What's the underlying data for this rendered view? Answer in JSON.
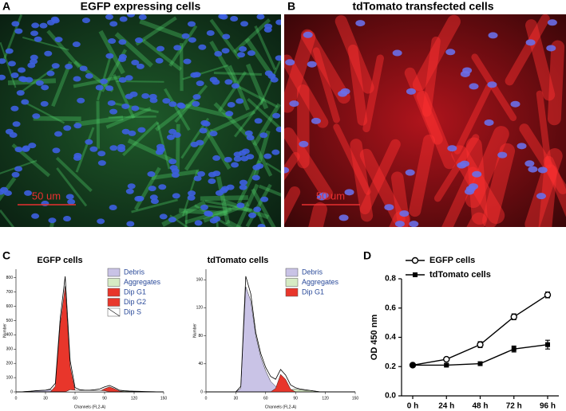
{
  "panels": {
    "A": {
      "label": "A",
      "title": "EGFP expressing cells",
      "scale_bar": "50 um"
    },
    "B": {
      "label": "B",
      "title": "tdTomato transfected cells",
      "scale_bar": "50 um"
    },
    "C": {
      "label": "C"
    },
    "D": {
      "label": "D"
    }
  },
  "chart_data": [
    {
      "type": "area",
      "title": "EGFP cells",
      "xlabel": "Channels (FL2-A)",
      "ylabel": "Number",
      "x": [
        0,
        5,
        10,
        15,
        20,
        25,
        30,
        35,
        40,
        45,
        50,
        55,
        60,
        65,
        70,
        75,
        80,
        85,
        90,
        95,
        100,
        105,
        110,
        115,
        120,
        125,
        130,
        135,
        140,
        145,
        150
      ],
      "values": [
        0,
        0,
        3,
        5,
        8,
        10,
        12,
        20,
        60,
        520,
        810,
        220,
        30,
        15,
        12,
        12,
        15,
        20,
        35,
        45,
        30,
        12,
        8,
        6,
        5,
        4,
        3,
        2,
        1,
        0,
        0
      ],
      "series": [
        {
          "name": "Debris",
          "color": "#c9c3e6",
          "values": [
            0,
            0,
            3,
            5,
            8,
            10,
            12,
            15,
            0,
            0,
            0,
            0,
            0,
            0,
            0,
            0,
            0,
            0,
            0,
            0,
            0,
            0,
            0,
            0,
            0,
            0,
            0,
            0,
            0,
            0,
            0
          ]
        },
        {
          "name": "Aggregates",
          "color": "#d6ebc4",
          "values": [
            0,
            0,
            0,
            0,
            0,
            0,
            0,
            0,
            0,
            0,
            0,
            0,
            0,
            0,
            0,
            0,
            0,
            0,
            0,
            0,
            0,
            5,
            6,
            5,
            4,
            3,
            2,
            0,
            0,
            0,
            0
          ]
        },
        {
          "name": "Dip G1",
          "color": "#e8362b",
          "values": [
            0,
            0,
            0,
            0,
            0,
            0,
            0,
            0,
            40,
            480,
            740,
            180,
            10,
            0,
            0,
            0,
            0,
            0,
            0,
            0,
            0,
            0,
            0,
            0,
            0,
            0,
            0,
            0,
            0,
            0,
            0
          ]
        },
        {
          "name": "Dip G2",
          "color": "#e8362b",
          "values": [
            0,
            0,
            0,
            0,
            0,
            0,
            0,
            0,
            0,
            0,
            0,
            0,
            0,
            0,
            0,
            0,
            0,
            5,
            22,
            35,
            22,
            6,
            0,
            0,
            0,
            0,
            0,
            0,
            0,
            0,
            0
          ]
        },
        {
          "name": "Dip S",
          "color": "#ffffff",
          "values": [
            0,
            0,
            0,
            0,
            0,
            0,
            0,
            0,
            0,
            0,
            0,
            15,
            12,
            10,
            10,
            10,
            10,
            10,
            8,
            0,
            0,
            0,
            0,
            0,
            0,
            0,
            0,
            0,
            0,
            0,
            0
          ]
        }
      ],
      "xlim": [
        0,
        150
      ],
      "xticks": [
        0,
        30,
        60,
        90,
        120,
        150
      ],
      "ylim": [
        0,
        860
      ],
      "yticks": [
        0,
        100,
        200,
        300,
        400,
        500,
        600,
        700,
        800
      ]
    },
    {
      "type": "area",
      "title": "tdTomato cells",
      "xlabel": "Channels (FL2-A)",
      "ylabel": "Number",
      "x": [
        0,
        5,
        10,
        15,
        20,
        25,
        30,
        35,
        40,
        45,
        50,
        55,
        60,
        65,
        70,
        75,
        80,
        85,
        90,
        95,
        100,
        105,
        110,
        115,
        120,
        125,
        130,
        135,
        140,
        145,
        150
      ],
      "values": [
        0,
        0,
        0,
        0,
        0,
        0,
        0,
        8,
        165,
        140,
        85,
        55,
        35,
        22,
        18,
        32,
        24,
        10,
        6,
        4,
        3,
        2,
        1,
        0,
        0,
        0,
        0,
        0,
        0,
        0,
        0
      ],
      "series": [
        {
          "name": "Debris",
          "color": "#c9c3e6",
          "values": [
            0,
            0,
            0,
            0,
            0,
            0,
            0,
            5,
            150,
            130,
            80,
            50,
            30,
            15,
            8,
            4,
            2,
            0,
            0,
            0,
            0,
            0,
            0,
            0,
            0,
            0,
            0,
            0,
            0,
            0,
            0
          ]
        },
        {
          "name": "Aggregates",
          "color": "#d6ebc4",
          "values": [
            0,
            0,
            0,
            0,
            0,
            0,
            0,
            0,
            0,
            0,
            0,
            0,
            0,
            0,
            0,
            0,
            0,
            3,
            4,
            3,
            2,
            2,
            1,
            0,
            0,
            0,
            0,
            0,
            0,
            0,
            0
          ]
        },
        {
          "name": "Dip G1",
          "color": "#e8362b",
          "values": [
            0,
            0,
            0,
            0,
            0,
            0,
            0,
            0,
            0,
            0,
            0,
            0,
            0,
            0,
            5,
            25,
            18,
            4,
            0,
            0,
            0,
            0,
            0,
            0,
            0,
            0,
            0,
            0,
            0,
            0,
            0
          ]
        }
      ],
      "xlim": [
        0,
        150
      ],
      "xticks": [
        0,
        30,
        60,
        90,
        120,
        150
      ],
      "ylim": [
        0,
        175
      ],
      "yticks": [
        0,
        40,
        80,
        120,
        160
      ]
    },
    {
      "type": "line",
      "ylabel": "OD 450 nm",
      "categories": [
        "0 h",
        "24 h",
        "48 h",
        "72 h",
        "96 h"
      ],
      "series": [
        {
          "name": "EGFP cells",
          "color": "#000000",
          "marker": "open-circle",
          "values": [
            0.21,
            0.25,
            0.35,
            0.54,
            0.69
          ],
          "errors": [
            0.01,
            0.01,
            0.02,
            0.02,
            0.02
          ]
        },
        {
          "name": "tdTomato cells",
          "color": "#000000",
          "marker": "filled-square",
          "values": [
            0.21,
            0.21,
            0.22,
            0.32,
            0.35
          ],
          "errors": [
            0.01,
            0.01,
            0.01,
            0.02,
            0.03
          ]
        }
      ],
      "ylim": [
        0,
        0.8
      ],
      "yticks": [
        {
          "value": 0,
          "label": "0.0"
        },
        0.2,
        0.4,
        0.6,
        0.8
      ]
    }
  ]
}
